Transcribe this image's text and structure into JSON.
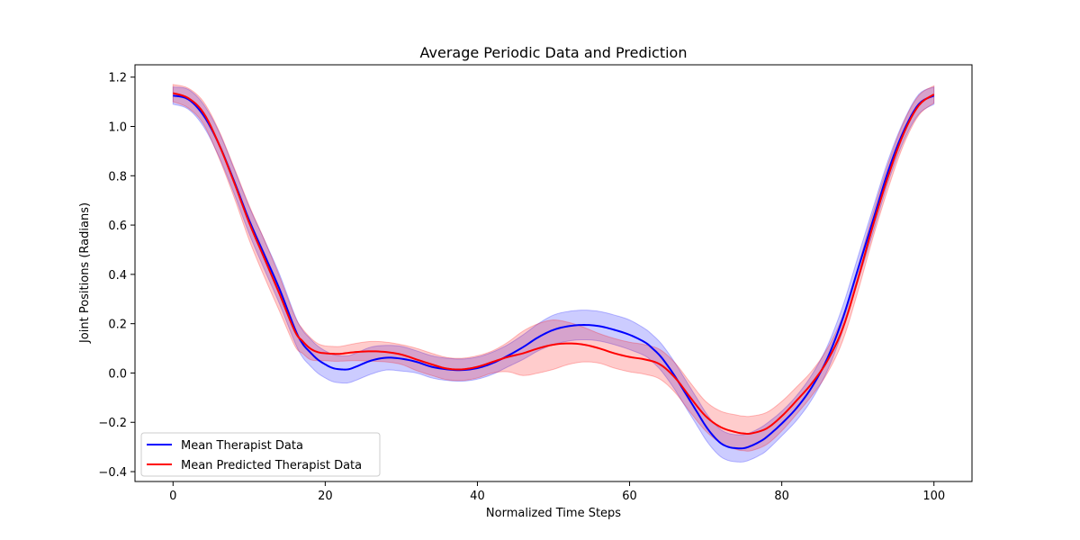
{
  "chart_data": {
    "type": "line",
    "title": "Average Periodic Data and Prediction",
    "xlabel": "Normalized Time Steps",
    "ylabel": "Joint Positions (Radians)",
    "xlim": [
      -5,
      105
    ],
    "ylim": [
      -0.44,
      1.25
    ],
    "xticks": [
      0,
      20,
      40,
      60,
      80,
      100
    ],
    "yticks": [
      -0.4,
      -0.2,
      0.0,
      0.2,
      0.4,
      0.6,
      0.8,
      1.0,
      1.2
    ],
    "grid": false,
    "legend_position": "lower-left",
    "series": [
      {
        "name": "Mean Therapist Data",
        "color": "#0000ff",
        "band_color": "#0000ff",
        "x": [
          0,
          2,
          4,
          6,
          8,
          10,
          12,
          14,
          16,
          17,
          18,
          19,
          20,
          21,
          22,
          23,
          24,
          26,
          28,
          30,
          32,
          34,
          36,
          38,
          40,
          42,
          44,
          46,
          48,
          50,
          52,
          54,
          56,
          58,
          60,
          62,
          63,
          64,
          65,
          66,
          67,
          68,
          69,
          70,
          71,
          72,
          73,
          74,
          75,
          76,
          77,
          78,
          80,
          82,
          84,
          86,
          88,
          90,
          92,
          94,
          96,
          98,
          100
        ],
        "values": [
          1.125,
          1.11,
          1.045,
          0.93,
          0.78,
          0.62,
          0.48,
          0.34,
          0.18,
          0.12,
          0.085,
          0.055,
          0.035,
          0.02,
          0.015,
          0.015,
          0.025,
          0.05,
          0.062,
          0.058,
          0.045,
          0.025,
          0.015,
          0.012,
          0.02,
          0.04,
          0.07,
          0.105,
          0.145,
          0.175,
          0.19,
          0.195,
          0.19,
          0.175,
          0.155,
          0.125,
          0.1,
          0.07,
          0.03,
          -0.015,
          -0.065,
          -0.115,
          -0.165,
          -0.215,
          -0.255,
          -0.285,
          -0.3,
          -0.305,
          -0.305,
          -0.295,
          -0.28,
          -0.26,
          -0.205,
          -0.14,
          -0.055,
          0.06,
          0.22,
          0.42,
          0.62,
          0.82,
          0.98,
          1.09,
          1.125
        ],
        "band": [
          0.035,
          0.04,
          0.045,
          0.05,
          0.05,
          0.055,
          0.06,
          0.06,
          0.055,
          0.055,
          0.055,
          0.055,
          0.055,
          0.055,
          0.055,
          0.055,
          0.055,
          0.055,
          0.05,
          0.05,
          0.045,
          0.045,
          0.045,
          0.045,
          0.045,
          0.045,
          0.045,
          0.05,
          0.055,
          0.06,
          0.06,
          0.06,
          0.06,
          0.06,
          0.06,
          0.055,
          0.055,
          0.055,
          0.055,
          0.055,
          0.055,
          0.055,
          0.055,
          0.055,
          0.055,
          0.055,
          0.055,
          0.055,
          0.055,
          0.055,
          0.055,
          0.055,
          0.05,
          0.05,
          0.05,
          0.05,
          0.05,
          0.05,
          0.05,
          0.045,
          0.04,
          0.04,
          0.035
        ]
      },
      {
        "name": "Mean Predicted Therapist Data",
        "color": "#ff0000",
        "band_color": "#ff0000",
        "x": [
          0,
          2,
          4,
          6,
          8,
          10,
          12,
          14,
          16,
          17,
          18,
          19,
          20,
          21,
          22,
          24,
          26,
          28,
          30,
          32,
          34,
          36,
          38,
          40,
          42,
          44,
          46,
          48,
          50,
          52,
          54,
          56,
          58,
          60,
          62,
          64,
          66,
          68,
          70,
          72,
          74,
          75,
          76,
          78,
          80,
          82,
          84,
          86,
          88,
          90,
          92,
          94,
          96,
          98,
          100
        ],
        "values": [
          1.135,
          1.115,
          1.055,
          0.93,
          0.775,
          0.61,
          0.465,
          0.32,
          0.17,
          0.13,
          0.1,
          0.085,
          0.08,
          0.078,
          0.078,
          0.085,
          0.088,
          0.085,
          0.075,
          0.055,
          0.035,
          0.018,
          0.015,
          0.025,
          0.045,
          0.065,
          0.08,
          0.1,
          0.115,
          0.12,
          0.115,
          0.1,
          0.08,
          0.065,
          0.055,
          0.035,
          -0.02,
          -0.1,
          -0.175,
          -0.22,
          -0.24,
          -0.245,
          -0.245,
          -0.225,
          -0.175,
          -0.11,
          -0.04,
          0.05,
          0.18,
          0.38,
          0.6,
          0.8,
          0.97,
          1.085,
          1.13
        ],
        "band": [
          0.035,
          0.04,
          0.045,
          0.055,
          0.06,
          0.07,
          0.075,
          0.07,
          0.06,
          0.05,
          0.045,
          0.035,
          0.03,
          0.03,
          0.03,
          0.035,
          0.04,
          0.04,
          0.04,
          0.045,
          0.045,
          0.045,
          0.045,
          0.045,
          0.045,
          0.06,
          0.09,
          0.1,
          0.1,
          0.085,
          0.07,
          0.06,
          0.06,
          0.06,
          0.06,
          0.06,
          0.06,
          0.06,
          0.06,
          0.065,
          0.07,
          0.07,
          0.07,
          0.065,
          0.06,
          0.055,
          0.05,
          0.05,
          0.05,
          0.05,
          0.05,
          0.05,
          0.045,
          0.04,
          0.035
        ]
      }
    ]
  }
}
